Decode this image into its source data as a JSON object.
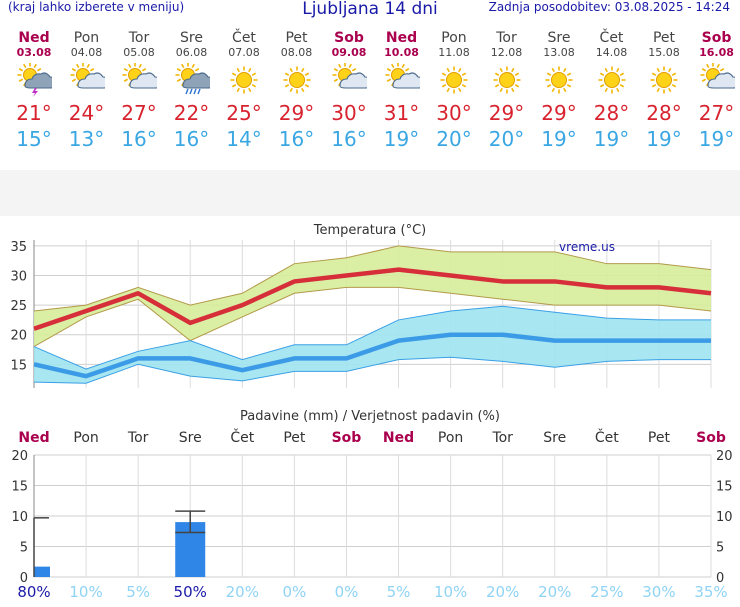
{
  "header": {
    "menu_hint": "(kraj lahko izberete v meniju)",
    "title": "Ljubljana 14 dni",
    "updated": "Zadnja posodobitev: 03.08.2025 - 14:24"
  },
  "days": [
    {
      "name": "Ned",
      "date": "03.08",
      "weekend": true,
      "icon": "sun-cloud-thunder-icon",
      "tmax": "21°",
      "tmin": "15°"
    },
    {
      "name": "Pon",
      "date": "04.08",
      "weekend": false,
      "icon": "sun-cloud-icon",
      "tmax": "24°",
      "tmin": "13°"
    },
    {
      "name": "Tor",
      "date": "05.08",
      "weekend": false,
      "icon": "sun-cloud-icon",
      "tmax": "27°",
      "tmin": "16°"
    },
    {
      "name": "Sre",
      "date": "06.08",
      "weekend": false,
      "icon": "sun-cloud-rain-icon",
      "tmax": "22°",
      "tmin": "16°"
    },
    {
      "name": "Čet",
      "date": "07.08",
      "weekend": false,
      "icon": "sun-icon",
      "tmax": "25°",
      "tmin": "14°"
    },
    {
      "name": "Pet",
      "date": "08.08",
      "weekend": false,
      "icon": "sun-icon",
      "tmax": "29°",
      "tmin": "16°"
    },
    {
      "name": "Sob",
      "date": "09.08",
      "weekend": true,
      "icon": "sun-cloud-icon",
      "tmax": "30°",
      "tmin": "16°"
    },
    {
      "name": "Ned",
      "date": "10.08",
      "weekend": true,
      "icon": "sun-cloud-icon",
      "tmax": "31°",
      "tmin": "19°"
    },
    {
      "name": "Pon",
      "date": "11.08",
      "weekend": false,
      "icon": "sun-icon",
      "tmax": "30°",
      "tmin": "20°"
    },
    {
      "name": "Tor",
      "date": "12.08",
      "weekend": false,
      "icon": "sun-icon",
      "tmax": "29°",
      "tmin": "20°"
    },
    {
      "name": "Sre",
      "date": "13.08",
      "weekend": false,
      "icon": "sun-icon",
      "tmax": "29°",
      "tmin": "19°"
    },
    {
      "name": "Čet",
      "date": "14.08",
      "weekend": false,
      "icon": "sun-icon",
      "tmax": "28°",
      "tmin": "19°"
    },
    {
      "name": "Pet",
      "date": "15.08",
      "weekend": false,
      "icon": "sun-icon",
      "tmax": "28°",
      "tmin": "19°"
    },
    {
      "name": "Sob",
      "date": "16.08",
      "weekend": true,
      "icon": "sun-cloud-icon",
      "tmax": "27°",
      "tmin": "19°"
    }
  ],
  "colors": {
    "accent_blue": "#1a1aa8",
    "weekend": "#aa004d",
    "tmax": "#d8232f",
    "tmin": "#3aa7e3",
    "tmax_band": "#d6ec9a",
    "tmin_band": "#9fe3ef",
    "tmin_line": "#3c9be6",
    "bar": "#2f86e6"
  },
  "chart_data": [
    {
      "type": "line",
      "title": "Temperatura (°C)",
      "watermark": "vreme.us",
      "ylim": [
        11,
        36
      ],
      "yticks": [
        15,
        20,
        25,
        30,
        35
      ],
      "categories": [
        "Ned",
        "Pon",
        "Tor",
        "Sre",
        "Čet",
        "Pet",
        "Sob",
        "Ned",
        "Pon",
        "Tor",
        "Sre",
        "Čet",
        "Pet",
        "Sob"
      ],
      "series": [
        {
          "name": "max",
          "values": [
            21,
            24,
            27,
            22,
            25,
            29,
            30,
            31,
            30,
            29,
            29,
            28,
            28,
            27
          ],
          "band_low": [
            18,
            23,
            26,
            19,
            23,
            27,
            28,
            28,
            27,
            26,
            25,
            25,
            25,
            24
          ],
          "band_high": [
            24,
            25,
            28,
            25,
            27,
            32,
            33,
            35,
            34,
            34,
            34,
            32,
            32,
            31
          ]
        },
        {
          "name": "min",
          "values": [
            15,
            13,
            16,
            16,
            14,
            16,
            16,
            19,
            20,
            20,
            19,
            19,
            19,
            19
          ],
          "band_low": [
            12,
            11.8,
            15,
            13,
            12.2,
            13.8,
            13.8,
            15.8,
            16.2,
            15.5,
            14.5,
            15.5,
            15.8,
            15.8
          ],
          "band_high": [
            18,
            14.2,
            17.2,
            19,
            15.8,
            18.3,
            18.3,
            22.5,
            24,
            24.8,
            23.8,
            22.8,
            22.5,
            22.5
          ]
        }
      ]
    },
    {
      "type": "bar",
      "title": "Padavine (mm) / Verjetnost padavin (%)",
      "ylim": [
        0,
        20
      ],
      "yticks": [
        0,
        5,
        10,
        15,
        20
      ],
      "categories": [
        "Ned",
        "Pon",
        "Tor",
        "Sre",
        "Čet",
        "Pet",
        "Sob",
        "Ned",
        "Pon",
        "Tor",
        "Sre",
        "Čet",
        "Pet",
        "Sob"
      ],
      "weekend": [
        true,
        false,
        false,
        false,
        false,
        false,
        true,
        true,
        false,
        false,
        false,
        false,
        false,
        true
      ],
      "values": [
        1.7,
        0,
        0,
        9,
        0,
        0,
        0,
        0,
        0,
        0,
        0,
        0,
        0,
        0
      ],
      "error_high": [
        9.7,
        0,
        0,
        10.8,
        0,
        0,
        0,
        0,
        0,
        0,
        0,
        0,
        0,
        0
      ],
      "error_low": [
        0,
        0,
        0,
        7.3,
        0,
        0,
        0,
        0,
        0,
        0,
        0,
        0,
        0,
        0
      ],
      "probability": [
        "80%",
        "10%",
        "5%",
        "50%",
        "20%",
        "0%",
        "0%",
        "5%",
        "10%",
        "20%",
        "20%",
        "25%",
        "30%",
        "35%"
      ]
    }
  ]
}
